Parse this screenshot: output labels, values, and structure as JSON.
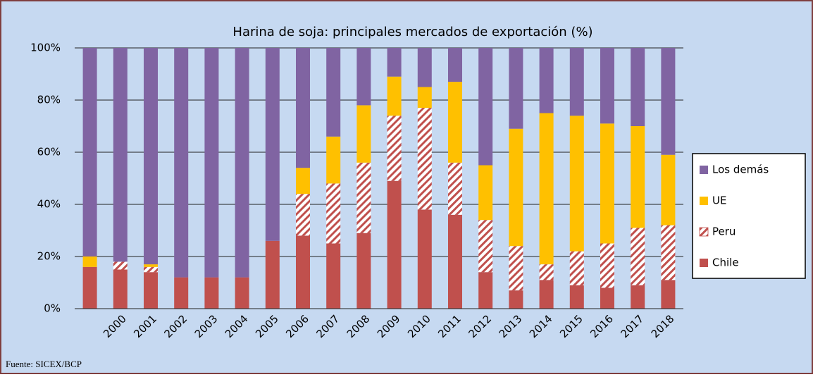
{
  "chart_data": {
    "type": "stacked_bar",
    "title": "Harina de soja: principales mercados de exportación (%)",
    "source": "Fuente: SICEX/BCP",
    "categories": [
      null,
      "2000",
      "2001",
      "2002",
      "2003",
      "2004",
      "2005",
      "2006",
      "2007",
      "2008",
      "2009",
      "2010",
      "2011",
      "2012",
      "2013",
      "2014",
      "2015",
      "2016",
      "2017",
      "2018"
    ],
    "series": [
      {
        "name": "Chile",
        "color": "#c0504d",
        "values": [
          16,
          15,
          14,
          12,
          12,
          12,
          26,
          28,
          25,
          29,
          49,
          38,
          36,
          14,
          7,
          11,
          9,
          8,
          9,
          11
        ]
      },
      {
        "name": "Peru",
        "color": "#c0504d",
        "pattern": "hatch",
        "values": [
          0,
          3,
          2,
          0,
          0,
          0,
          0,
          16,
          23,
          27,
          25,
          39,
          20,
          20,
          17,
          6,
          13,
          17,
          22,
          21
        ]
      },
      {
        "name": "UE",
        "color": "#ffc000",
        "values": [
          4,
          0,
          1,
          0,
          0,
          0,
          0,
          10,
          18,
          22,
          15,
          8,
          31,
          21,
          45,
          58,
          52,
          46,
          39,
          27
        ]
      },
      {
        "name": "Los demás",
        "color": "#8064a2",
        "values": [
          80,
          82,
          83,
          88,
          88,
          88,
          74,
          46,
          34,
          22,
          11,
          15,
          13,
          45,
          31,
          25,
          26,
          29,
          30,
          41
        ]
      }
    ],
    "ylim": [
      0,
      100
    ],
    "yticks": [
      {
        "value": 0,
        "label": "0%"
      },
      {
        "value": 20,
        "label": "20%"
      },
      {
        "value": 40,
        "label": "40%"
      },
      {
        "value": 60,
        "label": "60%"
      },
      {
        "value": 80,
        "label": "80%"
      },
      {
        "value": 100,
        "label": "100%"
      }
    ],
    "grid": true,
    "legend": "right"
  }
}
